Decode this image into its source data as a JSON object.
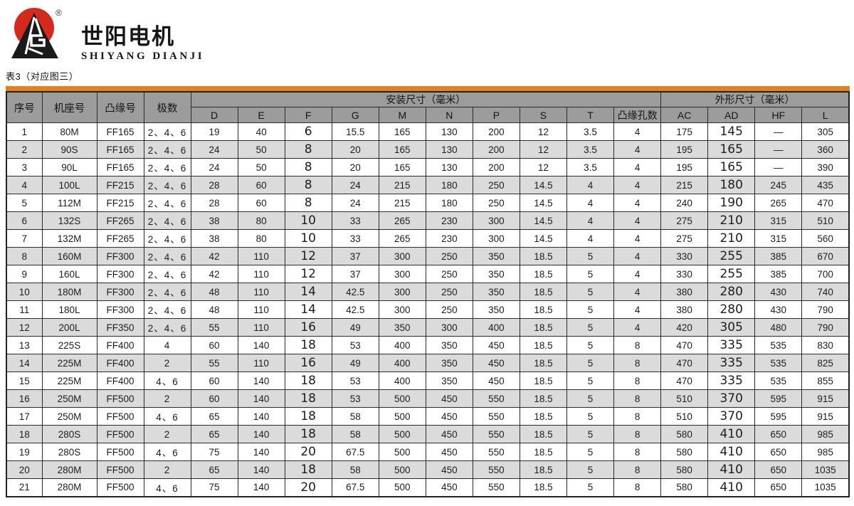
{
  "brand": {
    "cn": "世阳电机",
    "en": "SHIYANG DIANJI",
    "registered": "®",
    "logo_red": "#d5291d",
    "logo_black": "#1a1a1a"
  },
  "caption": "表3（对应图三）",
  "colors": {
    "orange_bar": "#e2821e",
    "header_bg": "#9c9c9c",
    "alt_row_bg": "#dbdbdb",
    "border": "#2b2b2b"
  },
  "table": {
    "fixed_headers": [
      "序号",
      "机座号",
      "凸缘号",
      "极数"
    ],
    "group_headers": {
      "mount": "安装尺寸（毫米）",
      "outline": "外形尺寸（毫米）"
    },
    "sub_headers": [
      "D",
      "E",
      "F",
      "G",
      "M",
      "N",
      "P",
      "S",
      "T",
      "凸缘孔数",
      "AC",
      "AD",
      "HF",
      "L"
    ],
    "rows": [
      [
        "1",
        "80M",
        "FF165",
        "2、4、6",
        "19",
        "40",
        "6",
        "15.5",
        "165",
        "130",
        "200",
        "12",
        "3.5",
        "4",
        "175",
        "145",
        "—",
        "305"
      ],
      [
        "2",
        "90S",
        "FF165",
        "2、4、6",
        "24",
        "50",
        "8",
        "20",
        "165",
        "130",
        "200",
        "12",
        "3.5",
        "4",
        "195",
        "165",
        "—",
        "360"
      ],
      [
        "3",
        "90L",
        "FF165",
        "2、4、6",
        "24",
        "50",
        "8",
        "20",
        "165",
        "130",
        "200",
        "12",
        "3.5",
        "4",
        "195",
        "165",
        "—",
        "390"
      ],
      [
        "4",
        "100L",
        "FF215",
        "2、4、6",
        "28",
        "60",
        "8",
        "24",
        "215",
        "180",
        "250",
        "14.5",
        "4",
        "4",
        "215",
        "180",
        "245",
        "435"
      ],
      [
        "5",
        "112M",
        "FF215",
        "2、4、6",
        "28",
        "60",
        "8",
        "24",
        "215",
        "180",
        "250",
        "14.5",
        "4",
        "4",
        "240",
        "190",
        "265",
        "470"
      ],
      [
        "6",
        "132S",
        "FF265",
        "2、4、6",
        "38",
        "80",
        "10",
        "33",
        "265",
        "230",
        "300",
        "14.5",
        "4",
        "4",
        "275",
        "210",
        "315",
        "510"
      ],
      [
        "7",
        "132M",
        "FF265",
        "2、4、6",
        "38",
        "80",
        "10",
        "33",
        "265",
        "230",
        "300",
        "14.5",
        "4",
        "4",
        "275",
        "210",
        "315",
        "560"
      ],
      [
        "8",
        "160M",
        "FF300",
        "2、4、6",
        "42",
        "110",
        "12",
        "37",
        "300",
        "250",
        "350",
        "18.5",
        "5",
        "4",
        "330",
        "255",
        "385",
        "670"
      ],
      [
        "9",
        "160L",
        "FF300",
        "2、4、6",
        "42",
        "110",
        "12",
        "37",
        "300",
        "250",
        "350",
        "18.5",
        "5",
        "4",
        "330",
        "255",
        "385",
        "700"
      ],
      [
        "10",
        "180M",
        "FF300",
        "2、4、6",
        "48",
        "110",
        "14",
        "42.5",
        "300",
        "250",
        "350",
        "18.5",
        "5",
        "4",
        "380",
        "280",
        "430",
        "740"
      ],
      [
        "11",
        "180L",
        "FF300",
        "2、4、6",
        "48",
        "110",
        "14",
        "42.5",
        "300",
        "250",
        "350",
        "18.5",
        "5",
        "4",
        "380",
        "280",
        "430",
        "790"
      ],
      [
        "12",
        "200L",
        "FF350",
        "2、4、6",
        "55",
        "110",
        "16",
        "49",
        "350",
        "300",
        "400",
        "18.5",
        "5",
        "4",
        "420",
        "305",
        "480",
        "790"
      ],
      [
        "13",
        "225S",
        "FF400",
        "4",
        "60",
        "140",
        "18",
        "53",
        "400",
        "350",
        "450",
        "18.5",
        "5",
        "8",
        "470",
        "335",
        "535",
        "830"
      ],
      [
        "14",
        "225M",
        "FF400",
        "2",
        "55",
        "110",
        "16",
        "49",
        "400",
        "350",
        "450",
        "18.5",
        "5",
        "8",
        "470",
        "335",
        "535",
        "825"
      ],
      [
        "15",
        "225M",
        "FF400",
        "4、6",
        "60",
        "140",
        "18",
        "53",
        "400",
        "350",
        "450",
        "18.5",
        "5",
        "8",
        "470",
        "335",
        "535",
        "855"
      ],
      [
        "16",
        "250M",
        "FF500",
        "2",
        "60",
        "140",
        "18",
        "53",
        "500",
        "450",
        "550",
        "18.5",
        "5",
        "8",
        "510",
        "370",
        "595",
        "915"
      ],
      [
        "17",
        "250M",
        "FF500",
        "4、6",
        "65",
        "140",
        "18",
        "58",
        "500",
        "450",
        "550",
        "18.5",
        "5",
        "8",
        "510",
        "370",
        "595",
        "915"
      ],
      [
        "18",
        "280S",
        "FF500",
        "2",
        "65",
        "140",
        "18",
        "58",
        "500",
        "450",
        "550",
        "18.5",
        "5",
        "8",
        "580",
        "410",
        "650",
        "985"
      ],
      [
        "19",
        "280S",
        "FF500",
        "4、6",
        "75",
        "140",
        "20",
        "67.5",
        "500",
        "450",
        "550",
        "18.5",
        "5",
        "8",
        "580",
        "410",
        "650",
        "985"
      ],
      [
        "20",
        "280M",
        "FF500",
        "2",
        "65",
        "140",
        "18",
        "58",
        "500",
        "450",
        "550",
        "18.5",
        "5",
        "8",
        "580",
        "410",
        "650",
        "1035"
      ],
      [
        "21",
        "280M",
        "FF500",
        "4、6",
        "75",
        "140",
        "20",
        "67.5",
        "500",
        "450",
        "550",
        "18.5",
        "5",
        "8",
        "580",
        "410",
        "650",
        "1035"
      ]
    ]
  }
}
